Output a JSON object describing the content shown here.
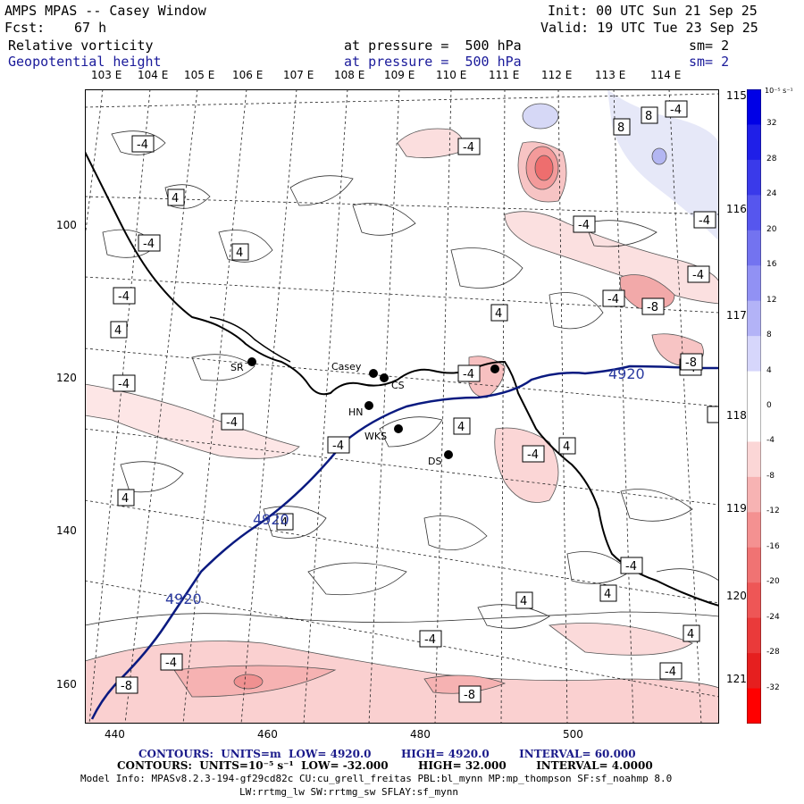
{
  "header": {
    "title": "AMPS MPAS -- Casey Window",
    "init": "Init: 00 UTC Sun 21 Sep 25",
    "fcst_label": "Fcst:",
    "fcst_value": "67 h",
    "valid": "Valid: 19 UTC Tue 23 Sep 25",
    "field1_name": "Relative vorticity",
    "field1_level": "at pressure =  500 hPa",
    "field1_sm": "sm= 2",
    "field2_name": "Geopotential height",
    "field2_level": "at pressure =  500 hPa",
    "field2_sm": "sm= 2"
  },
  "longitude_labels": [
    "103 E",
    "104 E",
    "105 E",
    "106 E",
    "107 E",
    "108 E",
    "109 E",
    "110 E",
    "111 E",
    "112 E",
    "113 E",
    "114 E"
  ],
  "right_longitude_labels": [
    "115 E",
    "116 E",
    "117 E",
    "118 E",
    "119 E",
    "120 E",
    "121 E"
  ],
  "y_ticks": [
    "100",
    "120",
    "140",
    "160"
  ],
  "x_ticks": [
    "440",
    "460",
    "480",
    "500"
  ],
  "stations": [
    {
      "name": "SR",
      "x": 457,
      "y": 117.5
    },
    {
      "name": "Casey",
      "x": 472.5,
      "y": 119.3
    },
    {
      "name": "CS",
      "x": 473.2,
      "y": 120.0
    },
    {
      "name": "HN",
      "x": 471.7,
      "y": 123.6
    },
    {
      "name": "WKS",
      "x": 476.3,
      "y": 126.8
    },
    {
      "name": "DS",
      "x": 482.5,
      "y": 130.0
    },
    {
      "name": "",
      "x": 488.5,
      "y": 119.0
    }
  ],
  "contour_labels": [
    "-4",
    "4",
    "-4",
    "4",
    "4",
    "-4",
    "4",
    "-4",
    "-4",
    "4",
    "-4",
    "-4",
    "-4",
    "8",
    "8",
    "-4",
    "-4",
    "4",
    "-4",
    "-4",
    "-4",
    "-8",
    "4",
    "-4",
    "4",
    "-4",
    "-4",
    "4",
    "4",
    "-4",
    "-4",
    "4",
    "4",
    "-4",
    "-4",
    "-8",
    "-8",
    "-4",
    "-4",
    "4",
    "4",
    "-4",
    "-4",
    "4",
    "-8"
  ],
  "height_contour_labels": [
    "4920",
    "4920",
    "4920"
  ],
  "colorbar": {
    "units": "10⁻⁵ s⁻¹",
    "values": [
      "32",
      "28",
      "24",
      "20",
      "16",
      "12",
      "8",
      "4",
      "0",
      "-4",
      "-8",
      "-12",
      "-16",
      "-20",
      "-24",
      "-28",
      "-32"
    ],
    "colors": [
      "#0000e6",
      "#1f1fe8",
      "#3a3aea",
      "#5656ee",
      "#7373f0",
      "#9191f4",
      "#b3b3f7",
      "#d6d6fb",
      "#ffffff",
      "#ffffff",
      "#fbd6d6",
      "#f7b3b3",
      "#f49191",
      "#f07373",
      "#ee5656",
      "#ea3a3a",
      "#e61f1f",
      "#ff0000"
    ]
  },
  "footer": {
    "line1_prefix": "CONTOURS:  UNITS=m  LOW=",
    "line1_low": "4920.0",
    "line1_high_label": "HIGH=",
    "line1_high": "4920.0",
    "line1_int_label": "INTERVAL=",
    "line1_int": "60.000",
    "line2_prefix": "CONTOURS:  UNITS=10⁻⁵ s⁻¹  LOW=",
    "line2_low": "-32.000",
    "line2_high_label": "HIGH=",
    "line2_high": "32.000",
    "line2_int_label": "INTERVAL=",
    "line2_int": "4.0000",
    "model_info1": "Model Info: MPASv8.2.3-194-gf29cd82c CU:cu_grell_freitas PBL:bl_mynn MP:mp_thompson SF:sf_noahmp 8.0",
    "model_info2": "LW:rrtmg_lw SW:rrtmg_sw SFLAY:sf_mynn"
  }
}
